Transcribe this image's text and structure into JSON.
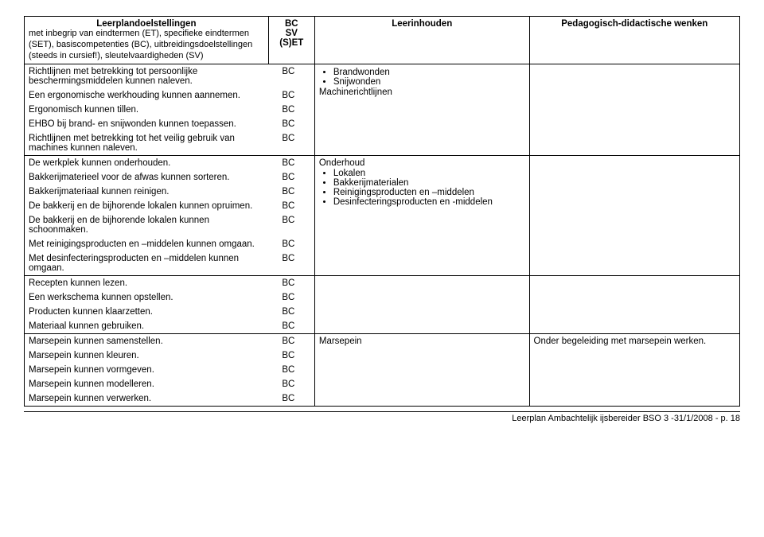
{
  "header": {
    "col1_title": "Leerplandoelstellingen",
    "col1_sub": "met inbegrip van eindtermen (ET), specifieke eindtermen (SET), basiscompetenties (BC), uitbreidingsdoelstellingen (steeds in cursief!), sleutelvaardigheden (SV)",
    "col2_line1": "BC",
    "col2_line2": "SV",
    "col2_line3": "(S)ET",
    "col3_title": "Leerinhouden",
    "col4_title": "Pedagogisch-didactische wenken"
  },
  "block1": {
    "r1": "Richtlijnen met betrekking tot persoonlijke beschermingsmiddelen kunnen naleven.",
    "r2": "Een ergonomische werkhouding kunnen aannemen.",
    "r3": "Ergonomisch kunnen tillen.",
    "r4": "EHBO bij brand- en snijwonden kunnen toepassen.",
    "r5": "Richtlijnen met betrekking tot het veilig gebruik van machines kunnen naleven.",
    "code": "BC",
    "li1": "Brandwonden",
    "li2": "Snijwonden",
    "extra": "Machinerichtlijnen"
  },
  "block2": {
    "r1": "De werkplek kunnen onderhouden.",
    "r2": "Bakkerijmaterieel voor de afwas kunnen sorteren.",
    "r3": "Bakkerijmateriaal kunnen reinigen.",
    "r4": "De bakkerij en de bijhorende lokalen kunnen opruimen.",
    "r5": "De bakkerij en de bijhorende lokalen kunnen schoonmaken.",
    "r6": "Met reinigingsproducten en –middelen kunnen omgaan.",
    "r7": "Met desinfecteringsproducten en –middelen kunnen omgaan.",
    "code": "BC",
    "title": "Onderhoud",
    "li1": "Lokalen",
    "li2": "Bakkerijmaterialen",
    "li3": "Reinigingsproducten en –middelen",
    "li4": "Desinfecteringsproducten en -middelen"
  },
  "block3": {
    "r1": "Recepten kunnen lezen.",
    "r2": "Een werkschema kunnen opstellen.",
    "r3": "Producten kunnen klaarzetten.",
    "r4": "Materiaal kunnen gebruiken.",
    "code": "BC"
  },
  "block4": {
    "r1": "Marsepein kunnen samenstellen.",
    "r2": "Marsepein kunnen kleuren.",
    "r3": "Marsepein kunnen vormgeven.",
    "r4": "Marsepein kunnen modelleren.",
    "r5": "Marsepein kunnen verwerken.",
    "code": "BC",
    "inhoud": "Marsepein",
    "wenk": "Onder begeleiding met marsepein werken."
  },
  "footer": "Leerplan Ambachtelijk ijsbereider BSO 3 -31/1/2008 - p. 18"
}
